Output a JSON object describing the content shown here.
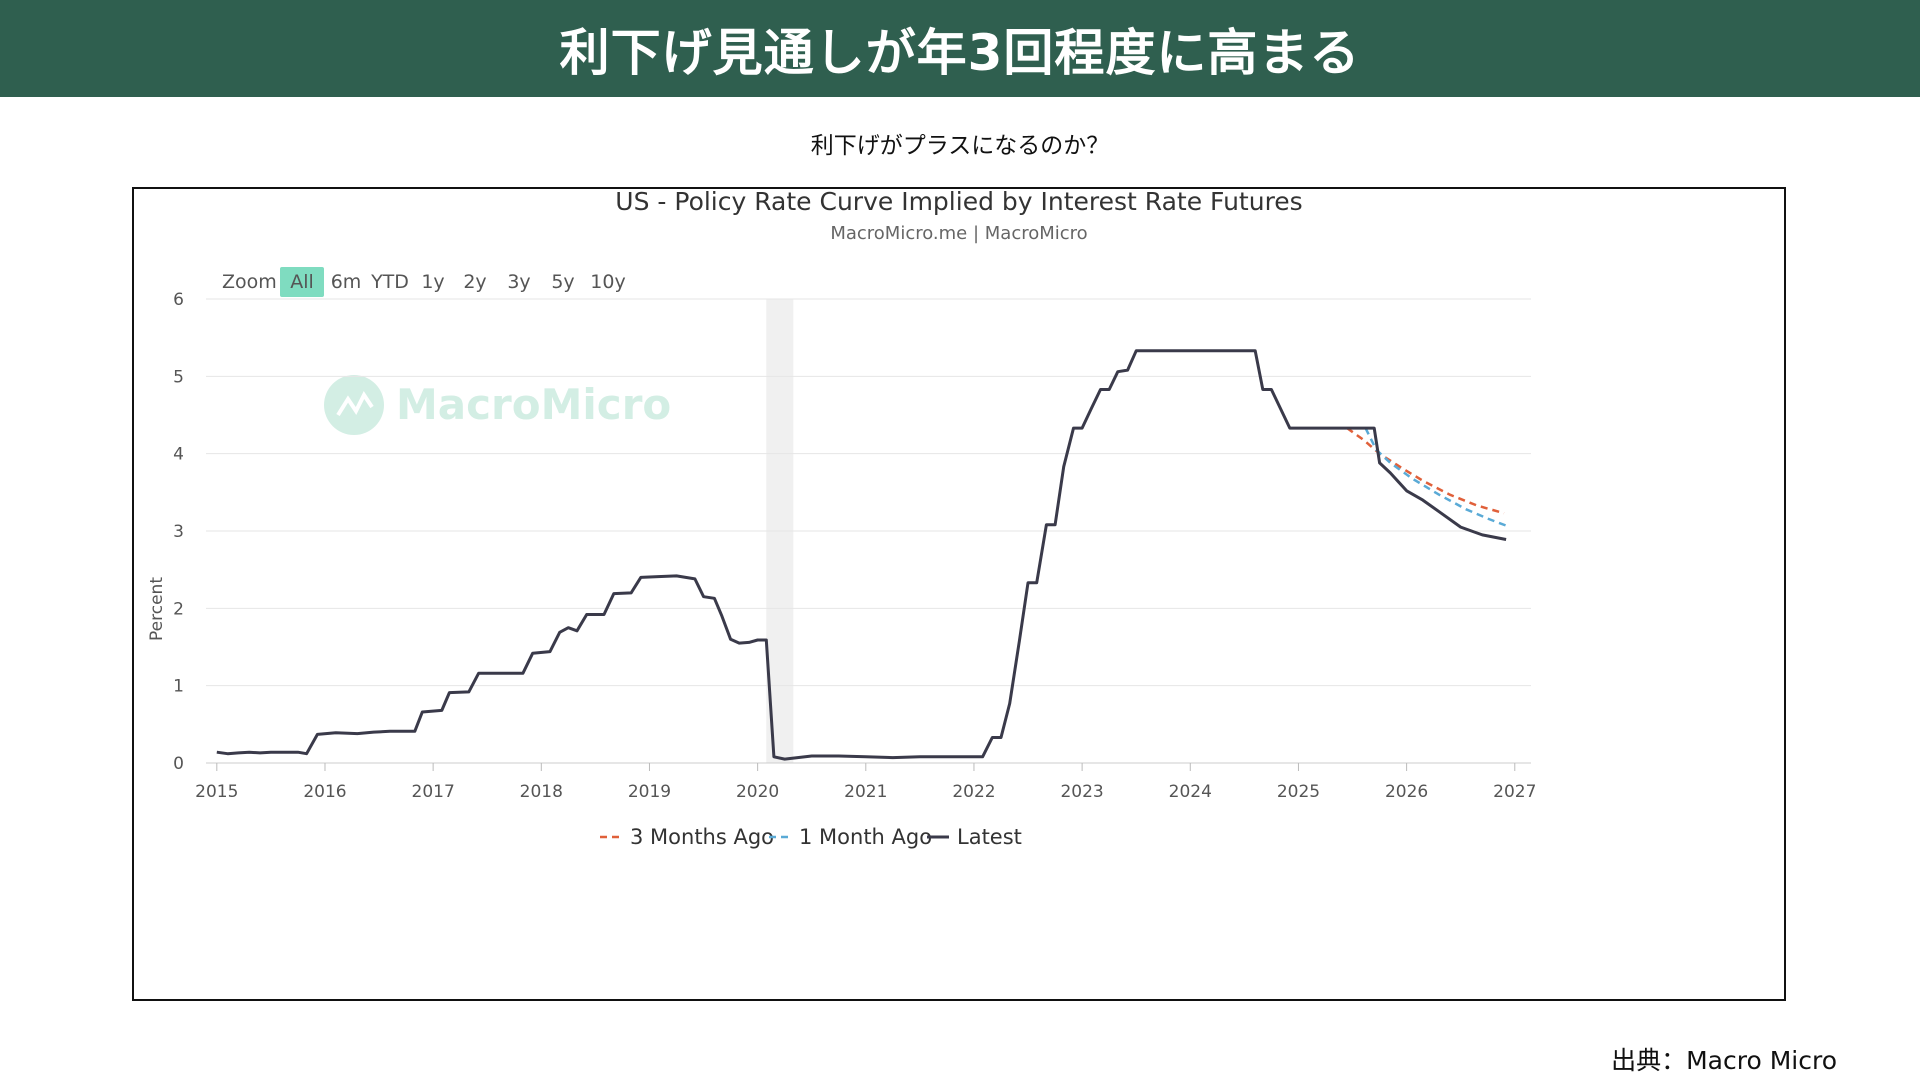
{
  "page": {
    "banner_title": "利下げ見通しが年3回程度に高まる",
    "subtitle": "利下げがプラスになるのか？",
    "source": "出典：Macro Micro"
  },
  "colors": {
    "banner": "#2f5f4f",
    "latest": "#3a3a4a",
    "three_months": "#e0603a",
    "one_month": "#5aaad6",
    "zoom_active": "#7fdcc0",
    "recession_band": "#f0f0f0"
  },
  "zoom": {
    "label": "Zoom",
    "buttons": [
      {
        "label": "All",
        "active": true
      },
      {
        "label": "6m",
        "active": false
      },
      {
        "label": "YTD",
        "active": false
      },
      {
        "label": "1y",
        "active": false
      },
      {
        "label": "2y",
        "active": false
      },
      {
        "label": "3y",
        "active": false
      },
      {
        "label": "5y",
        "active": false
      },
      {
        "label": "10y",
        "active": false
      }
    ]
  },
  "watermark": {
    "text": "MacroMicro",
    "icon": "macromicro-logo-icon"
  },
  "chart_data": {
    "type": "line",
    "title": "US - Policy Rate Curve Implied by Interest Rate Futures",
    "subtitle": "MacroMicro.me | MacroMicro",
    "ylabel": "Percent",
    "xlim": [
      2014.9,
      2027.15
    ],
    "ylim": [
      0,
      6
    ],
    "y_ticks": [
      0,
      1,
      2,
      3,
      4,
      5,
      6
    ],
    "x_ticks": [
      2015,
      2016,
      2017,
      2018,
      2019,
      2020,
      2021,
      2022,
      2023,
      2024,
      2025,
      2026,
      2027
    ],
    "shaded_period": [
      2020.08,
      2020.33
    ],
    "grid": true,
    "legend_position": "bottom-center",
    "series": [
      {
        "name": "3 Months Ago",
        "style": "dashed",
        "color": "#e0603a",
        "points": [
          [
            2025.45,
            4.33
          ],
          [
            2025.6,
            4.18
          ],
          [
            2025.75,
            4.0
          ],
          [
            2025.95,
            3.82
          ],
          [
            2026.15,
            3.65
          ],
          [
            2026.4,
            3.47
          ],
          [
            2026.65,
            3.33
          ],
          [
            2026.9,
            3.23
          ]
        ]
      },
      {
        "name": "1 Month Ago",
        "style": "dashed",
        "color": "#5aaad6",
        "points": [
          [
            2025.62,
            4.33
          ],
          [
            2025.72,
            4.05
          ],
          [
            2025.85,
            3.88
          ],
          [
            2026.05,
            3.68
          ],
          [
            2026.3,
            3.47
          ],
          [
            2026.55,
            3.28
          ],
          [
            2026.75,
            3.16
          ],
          [
            2026.92,
            3.07
          ]
        ]
      },
      {
        "name": "Latest",
        "style": "solid",
        "color": "#3a3a4a",
        "points": [
          [
            2015.0,
            0.14
          ],
          [
            2015.1,
            0.12
          ],
          [
            2015.2,
            0.13
          ],
          [
            2015.3,
            0.14
          ],
          [
            2015.4,
            0.13
          ],
          [
            2015.5,
            0.14
          ],
          [
            2015.6,
            0.14
          ],
          [
            2015.75,
            0.14
          ],
          [
            2015.83,
            0.12
          ],
          [
            2015.93,
            0.37
          ],
          [
            2016.1,
            0.39
          ],
          [
            2016.3,
            0.38
          ],
          [
            2016.45,
            0.4
          ],
          [
            2016.6,
            0.41
          ],
          [
            2016.75,
            0.41
          ],
          [
            2016.83,
            0.41
          ],
          [
            2016.9,
            0.66
          ],
          [
            2017.08,
            0.68
          ],
          [
            2017.15,
            0.91
          ],
          [
            2017.33,
            0.92
          ],
          [
            2017.42,
            1.16
          ],
          [
            2017.6,
            1.16
          ],
          [
            2017.75,
            1.16
          ],
          [
            2017.83,
            1.16
          ],
          [
            2017.92,
            1.42
          ],
          [
            2018.08,
            1.44
          ],
          [
            2018.17,
            1.69
          ],
          [
            2018.25,
            1.75
          ],
          [
            2018.33,
            1.71
          ],
          [
            2018.42,
            1.92
          ],
          [
            2018.58,
            1.92
          ],
          [
            2018.67,
            2.19
          ],
          [
            2018.83,
            2.2
          ],
          [
            2018.92,
            2.4
          ],
          [
            2019.08,
            2.41
          ],
          [
            2019.25,
            2.42
          ],
          [
            2019.42,
            2.38
          ],
          [
            2019.5,
            2.15
          ],
          [
            2019.6,
            2.13
          ],
          [
            2019.67,
            1.9
          ],
          [
            2019.75,
            1.6
          ],
          [
            2019.83,
            1.55
          ],
          [
            2019.92,
            1.56
          ],
          [
            2020.0,
            1.59
          ],
          [
            2020.08,
            1.59
          ],
          [
            2020.15,
            0.08
          ],
          [
            2020.25,
            0.05
          ],
          [
            2020.5,
            0.09
          ],
          [
            2020.75,
            0.09
          ],
          [
            2021.0,
            0.08
          ],
          [
            2021.25,
            0.07
          ],
          [
            2021.5,
            0.08
          ],
          [
            2021.75,
            0.08
          ],
          [
            2022.08,
            0.08
          ],
          [
            2022.17,
            0.33
          ],
          [
            2022.25,
            0.33
          ],
          [
            2022.33,
            0.77
          ],
          [
            2022.42,
            1.58
          ],
          [
            2022.5,
            2.33
          ],
          [
            2022.58,
            2.33
          ],
          [
            2022.67,
            3.08
          ],
          [
            2022.75,
            3.08
          ],
          [
            2022.83,
            3.83
          ],
          [
            2022.92,
            4.33
          ],
          [
            2023.0,
            4.33
          ],
          [
            2023.08,
            4.57
          ],
          [
            2023.17,
            4.83
          ],
          [
            2023.25,
            4.83
          ],
          [
            2023.33,
            5.06
          ],
          [
            2023.42,
            5.08
          ],
          [
            2023.5,
            5.33
          ],
          [
            2023.75,
            5.33
          ],
          [
            2024.0,
            5.33
          ],
          [
            2024.25,
            5.33
          ],
          [
            2024.5,
            5.33
          ],
          [
            2024.6,
            5.33
          ],
          [
            2024.67,
            4.83
          ],
          [
            2024.75,
            4.83
          ],
          [
            2024.92,
            4.33
          ],
          [
            2025.25,
            4.33
          ],
          [
            2025.5,
            4.33
          ],
          [
            2025.65,
            4.33
          ],
          [
            2025.7,
            4.33
          ],
          [
            2025.75,
            3.88
          ],
          [
            2025.85,
            3.75
          ],
          [
            2026.0,
            3.52
          ],
          [
            2026.15,
            3.4
          ],
          [
            2026.3,
            3.25
          ],
          [
            2026.5,
            3.05
          ],
          [
            2026.7,
            2.95
          ],
          [
            2026.92,
            2.89
          ]
        ]
      }
    ]
  }
}
